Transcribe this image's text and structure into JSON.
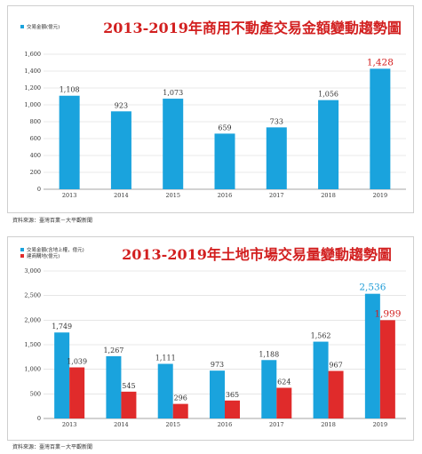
{
  "source_label": "資料來源：臺灣百業－大平觀新聞",
  "colors": {
    "blue": "#1aa3dd",
    "red": "#e02b2b",
    "title": "#d21f1f"
  },
  "chart_data": [
    {
      "type": "bar",
      "title": "2013-2019年商用不動產交易金額變動趨勢圖",
      "categories": [
        "2013",
        "2014",
        "2015",
        "2016",
        "2017",
        "2018",
        "2019"
      ],
      "series": [
        {
          "name": "交易金額(億元)",
          "values": [
            1108,
            923,
            1073,
            659,
            733,
            1056,
            1428
          ],
          "labels": [
            "1,108",
            "923",
            "1,073",
            "659",
            "733",
            "1,056",
            "1,428"
          ]
        }
      ],
      "ylim": [
        0,
        1600
      ],
      "yticks": [
        0,
        200,
        400,
        600,
        800,
        1000,
        1200,
        1400,
        1600
      ],
      "ytick_labels": [
        "0",
        "200",
        "400",
        "600",
        "800",
        "1,000",
        "1,200",
        "1,400",
        "1,600"
      ],
      "grid": true,
      "legend": "top-left"
    },
    {
      "type": "bar",
      "title": "2013-2019年土地市場交易量變動趨勢圖",
      "categories": [
        "2013",
        "2014",
        "2015",
        "2016",
        "2017",
        "2018",
        "2019"
      ],
      "series": [
        {
          "name": "交易金額(含地上權，億元)",
          "values": [
            1749,
            1267,
            1111,
            973,
            1188,
            1562,
            2536
          ],
          "labels": [
            "1,749",
            "1,267",
            "1,111",
            "973",
            "1,188",
            "1,562",
            "2,536"
          ]
        },
        {
          "name": "建商購地(億元)",
          "values": [
            1039,
            545,
            296,
            365,
            624,
            967,
            1999
          ],
          "labels": [
            "1,039",
            "545",
            "296",
            "365",
            "624",
            "967",
            "1,999"
          ]
        }
      ],
      "ylim": [
        0,
        3000
      ],
      "yticks": [
        0,
        500,
        1000,
        1500,
        2000,
        2500,
        3000
      ],
      "ytick_labels": [
        "0",
        "500",
        "1,000",
        "1,500",
        "2,000",
        "2,500",
        "3,000"
      ],
      "grid": true,
      "legend": "top-left"
    }
  ]
}
